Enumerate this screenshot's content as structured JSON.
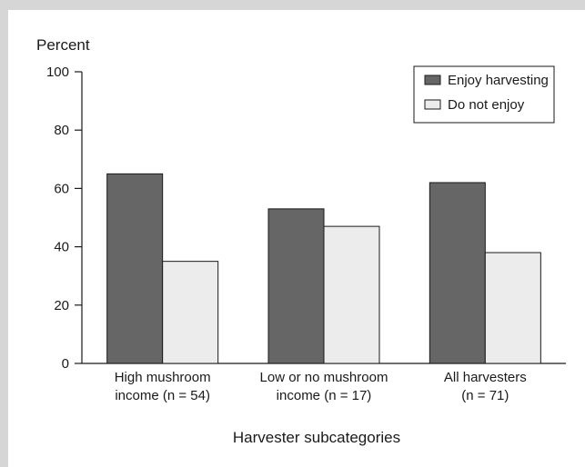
{
  "chart_data": {
    "type": "bar",
    "ylabel": "Percent",
    "xlabel": "Harvester subcategories",
    "ylim": [
      0,
      100
    ],
    "yticks": [
      0,
      20,
      40,
      60,
      80,
      100
    ],
    "categories": [
      [
        "High mushroom",
        "income (n = 54)"
      ],
      [
        "Low or no mushroom",
        "income (n = 17)"
      ],
      [
        "All harvesters",
        "(n = 71)"
      ]
    ],
    "series": [
      {
        "name": "Enjoy harvesting",
        "color": "#666666",
        "values": [
          65,
          53,
          62
        ]
      },
      {
        "name": "Do not enjoy",
        "color": "#ececec",
        "values": [
          35,
          47,
          38
        ]
      }
    ],
    "grid": false,
    "legend_position": "top-right"
  }
}
